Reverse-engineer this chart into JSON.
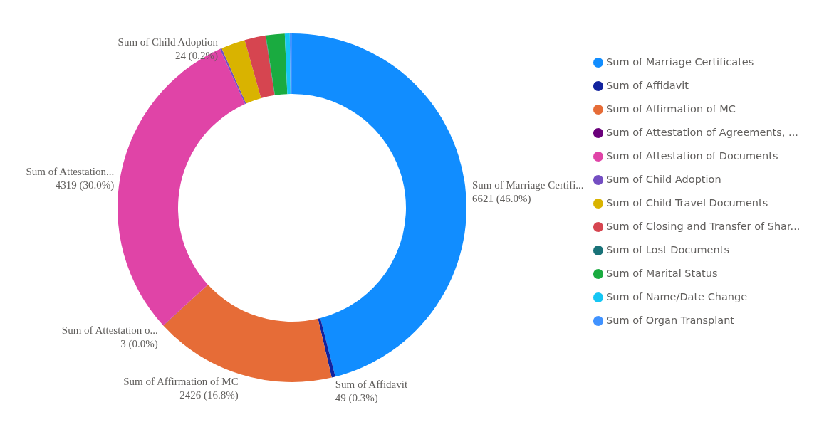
{
  "chart_data": {
    "type": "donut",
    "categories": [
      "Sum of Marriage Certificates",
      "Sum of Affidavit",
      "Sum of Affirmation of MC",
      "Sum of Attestation of Agreements, ...",
      "Sum of Attestation of Documents",
      "Sum of Child Adoption",
      "Sum of Child Travel Documents",
      "Sum of Closing and Transfer of Shar...",
      "Sum of Lost Documents",
      "Sum of Marital Status",
      "Sum of Name/Date Change",
      "Sum of Organ Transplant"
    ],
    "values": [
      6621,
      49,
      2426,
      3,
      4319,
      24,
      320,
      280,
      5,
      250,
      65,
      30
    ],
    "colors": [
      "#118dff",
      "#12239e",
      "#e66c37",
      "#6b007b",
      "#e044a7",
      "#744ec2",
      "#d9b300",
      "#d64550",
      "#197278",
      "#1aab40",
      "#15c6f4",
      "#4092ff"
    ],
    "value_labels": [
      "Sum of Marriage Certifi...\n6621 (46.0%)",
      "Sum of Affidavit\n49 (0.3%)",
      "Sum of Affirmation of MC\n2426 (16.8%)",
      "Sum of Attestation o...\n3 (0.0%)",
      "Sum of Attestation...\n4319 (30.0%)",
      "Sum of Child Adoption\n24 (0.2%)",
      null,
      null,
      null,
      null,
      null,
      null
    ],
    "legend": "right"
  }
}
